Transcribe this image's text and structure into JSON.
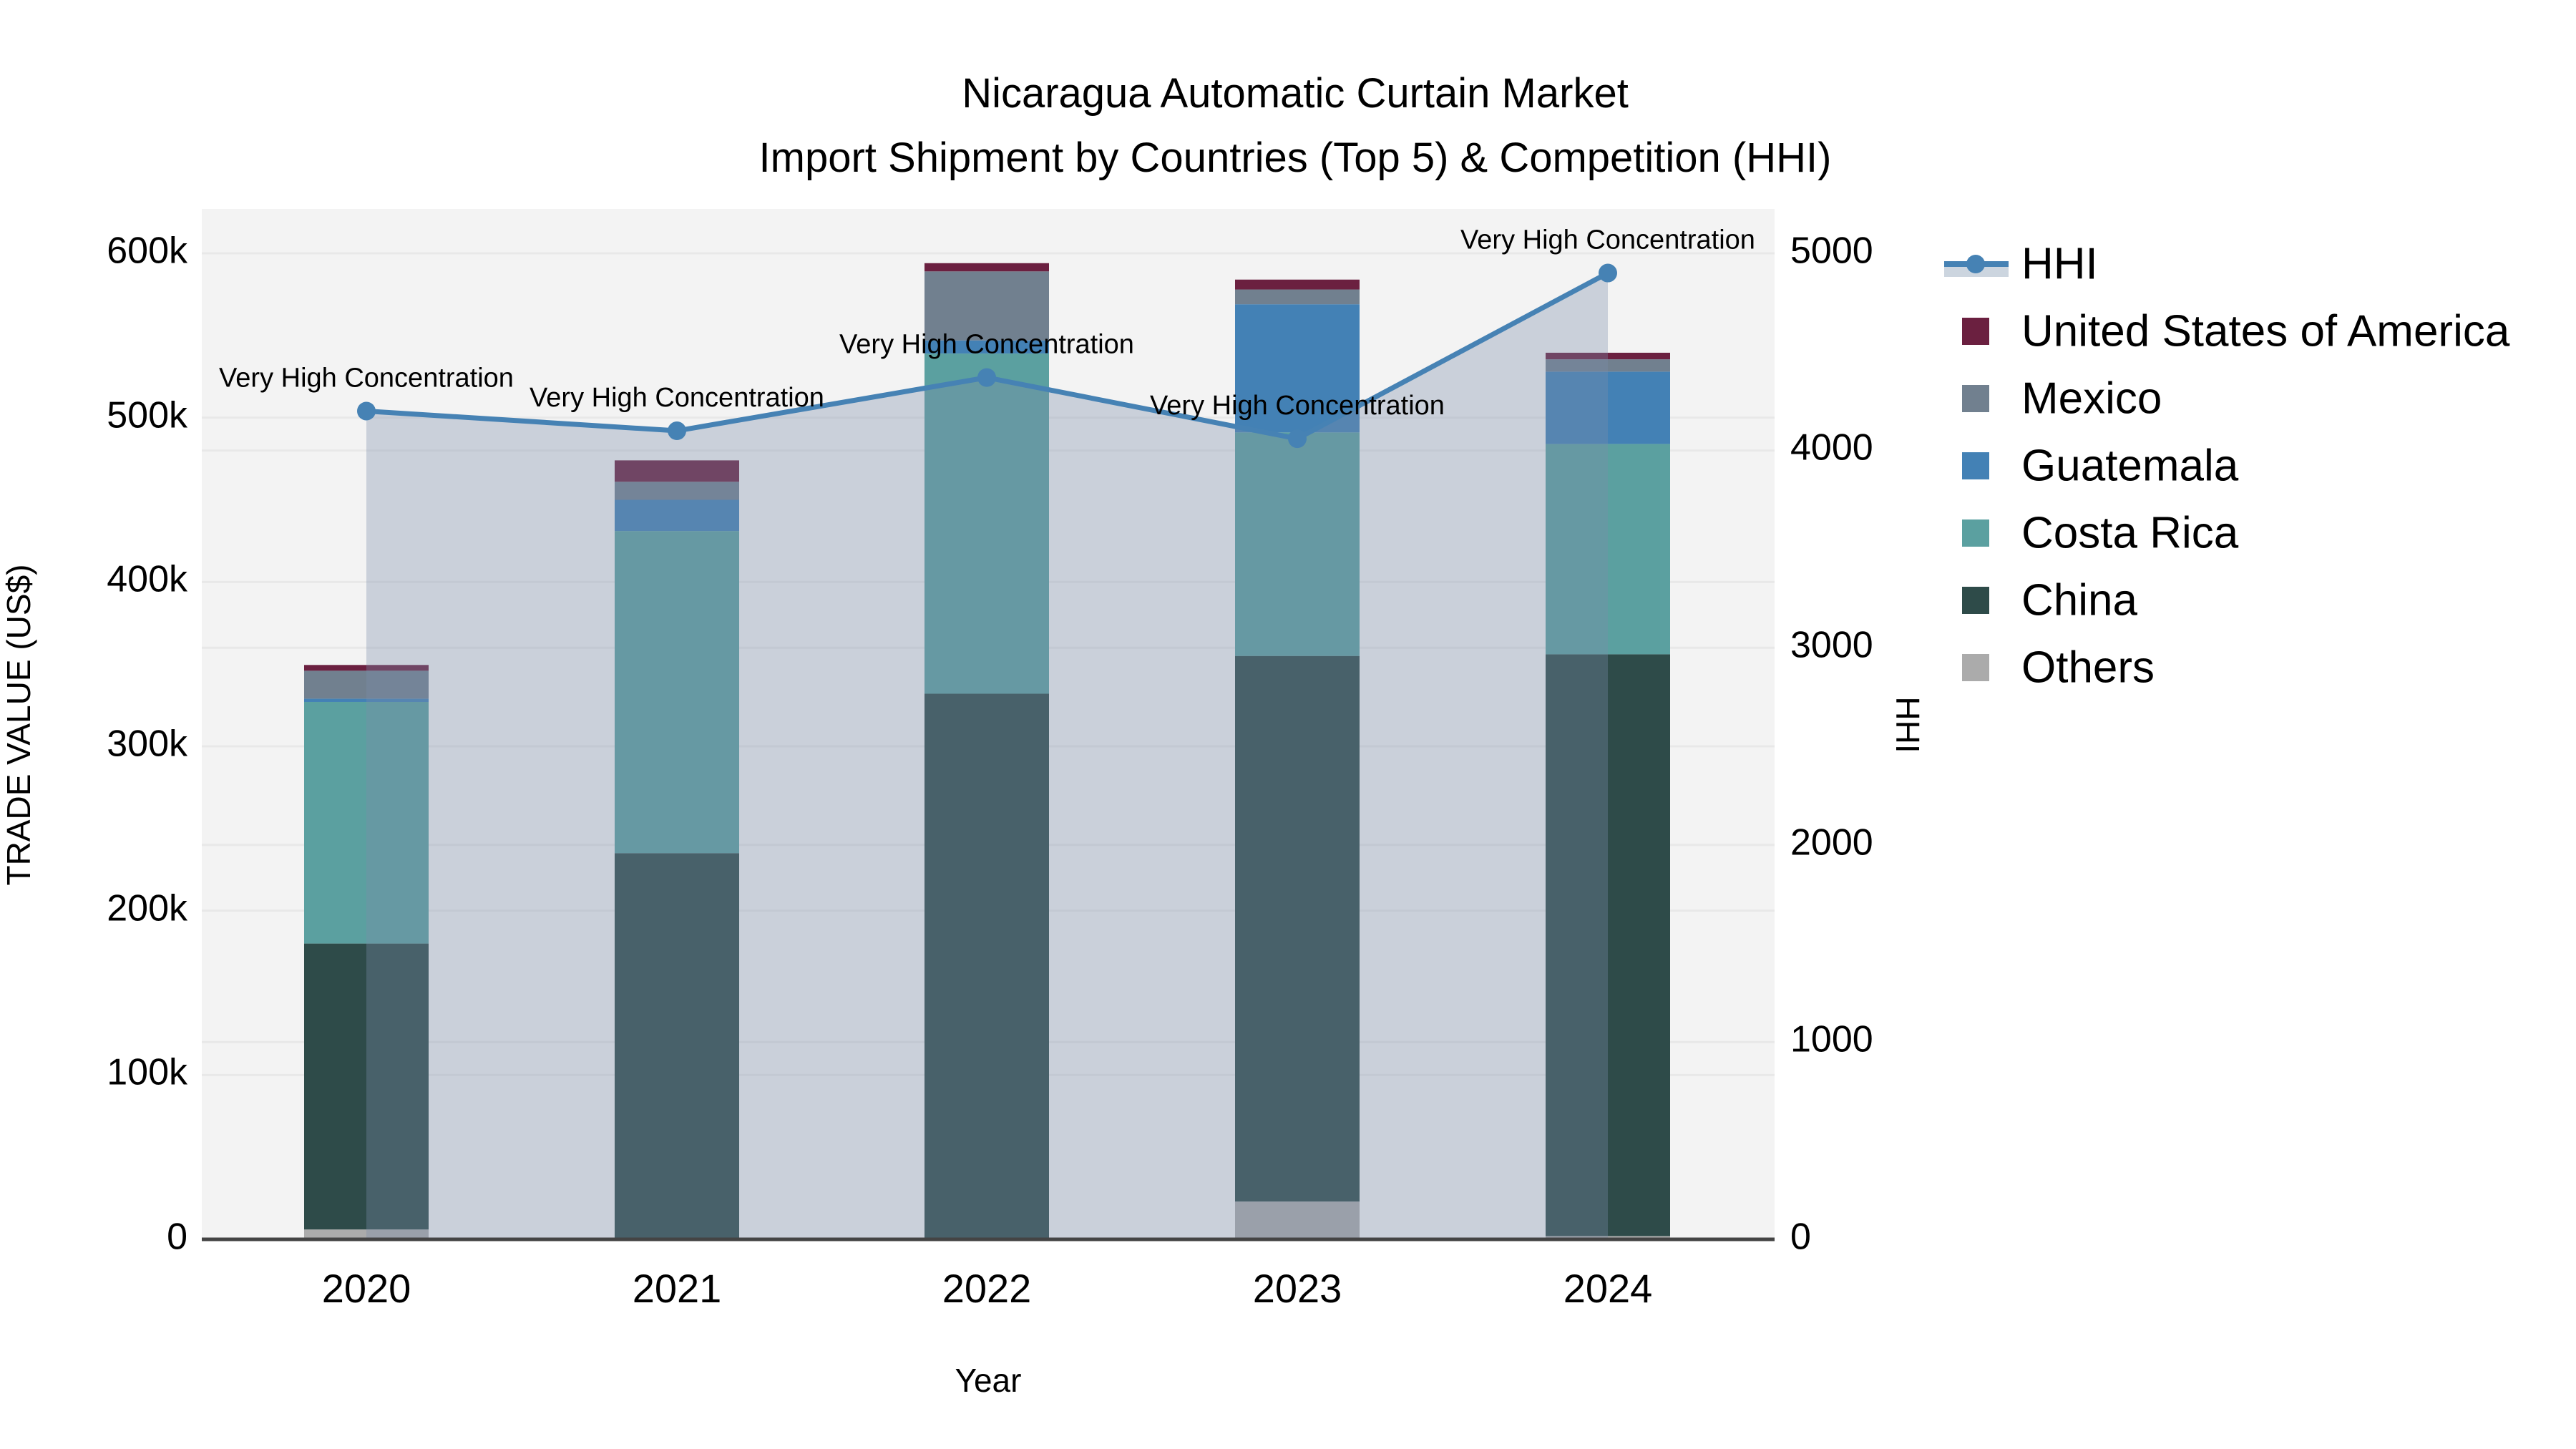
{
  "title": {
    "line1": "Nicaragua Automatic Curtain Market",
    "line2": "Import Shipment by Countries (Top 5) & Competition (HHI)"
  },
  "axes": {
    "x": {
      "label": "Year",
      "ticks": [
        "2020",
        "2021",
        "2022",
        "2023",
        "2024"
      ]
    },
    "left": {
      "label": "TRADE VALUE (US$)",
      "ticks": [
        "0",
        "100k",
        "200k",
        "300k",
        "400k",
        "500k",
        "600k"
      ]
    },
    "right": {
      "label": "HHI",
      "ticks": [
        "0",
        "1000",
        "2000",
        "3000",
        "4000",
        "5000"
      ]
    }
  },
  "legend": {
    "items": [
      {
        "label": "HHI",
        "type": "line",
        "color": "#4682b4"
      },
      {
        "label": "United States of America",
        "type": "swatch",
        "color": "#6b2040"
      },
      {
        "label": "Mexico",
        "type": "swatch",
        "color": "#71808f"
      },
      {
        "label": "Guatemala",
        "type": "swatch",
        "color": "#4381b5"
      },
      {
        "label": "Costa Rica",
        "type": "swatch",
        "color": "#5ba0a0"
      },
      {
        "label": "China",
        "type": "swatch",
        "color": "#2e4b49"
      },
      {
        "label": "Others",
        "type": "swatch",
        "color": "#ababab"
      }
    ]
  },
  "chart_data": {
    "type": "stacked-bar+line",
    "title": "Nicaragua Automatic Curtain Market — Import Shipment by Countries (Top 5) & Competition (HHI)",
    "categories": [
      "2020",
      "2021",
      "2022",
      "2023",
      "2024"
    ],
    "xlabel": "Year",
    "ylabel_left": "TRADE VALUE (US$)",
    "ylabel_right": "HHI",
    "ylim_left": [
      0,
      627000
    ],
    "ylim_right": [
      0,
      5220
    ],
    "grid": true,
    "legend_position": "right",
    "series": [
      {
        "name": "Others",
        "color": "#ababab",
        "values": [
          6000,
          1000,
          1000,
          23000,
          2000
        ]
      },
      {
        "name": "China",
        "color": "#2e4b49",
        "values": [
          174000,
          234000,
          331000,
          332000,
          354000
        ]
      },
      {
        "name": "Costa Rica",
        "color": "#5ba0a0",
        "values": [
          147000,
          196000,
          207000,
          136000,
          128000
        ]
      },
      {
        "name": "Guatemala",
        "color": "#4381b5",
        "values": [
          2000,
          19000,
          8000,
          78000,
          44000
        ]
      },
      {
        "name": "Mexico",
        "color": "#71808f",
        "values": [
          17000,
          11000,
          42000,
          9000,
          7500
        ]
      },
      {
        "name": "United States of America",
        "color": "#6b2040",
        "values": [
          3500,
          13000,
          5000,
          6000,
          4000
        ]
      }
    ],
    "line": {
      "name": "HHI",
      "color": "#4682b4",
      "area_fill": "rgba(123,142,170,0.34)",
      "values": [
        4200,
        4100,
        4370,
        4060,
        4900
      ]
    },
    "annotations": [
      {
        "x": "2020",
        "text": "Very High Concentration"
      },
      {
        "x": "2021",
        "text": "Very High Concentration"
      },
      {
        "x": "2022",
        "text": "Very High Concentration"
      },
      {
        "x": "2023",
        "text": "Very High Concentration"
      },
      {
        "x": "2024",
        "text": "Very High Concentration"
      }
    ]
  },
  "colors": {
    "plot_bg": "#f3f3f3",
    "grid": "#e8e8e8",
    "axis_line": "#444444",
    "hhi_area_legend_swatch": "#ccd5df"
  }
}
